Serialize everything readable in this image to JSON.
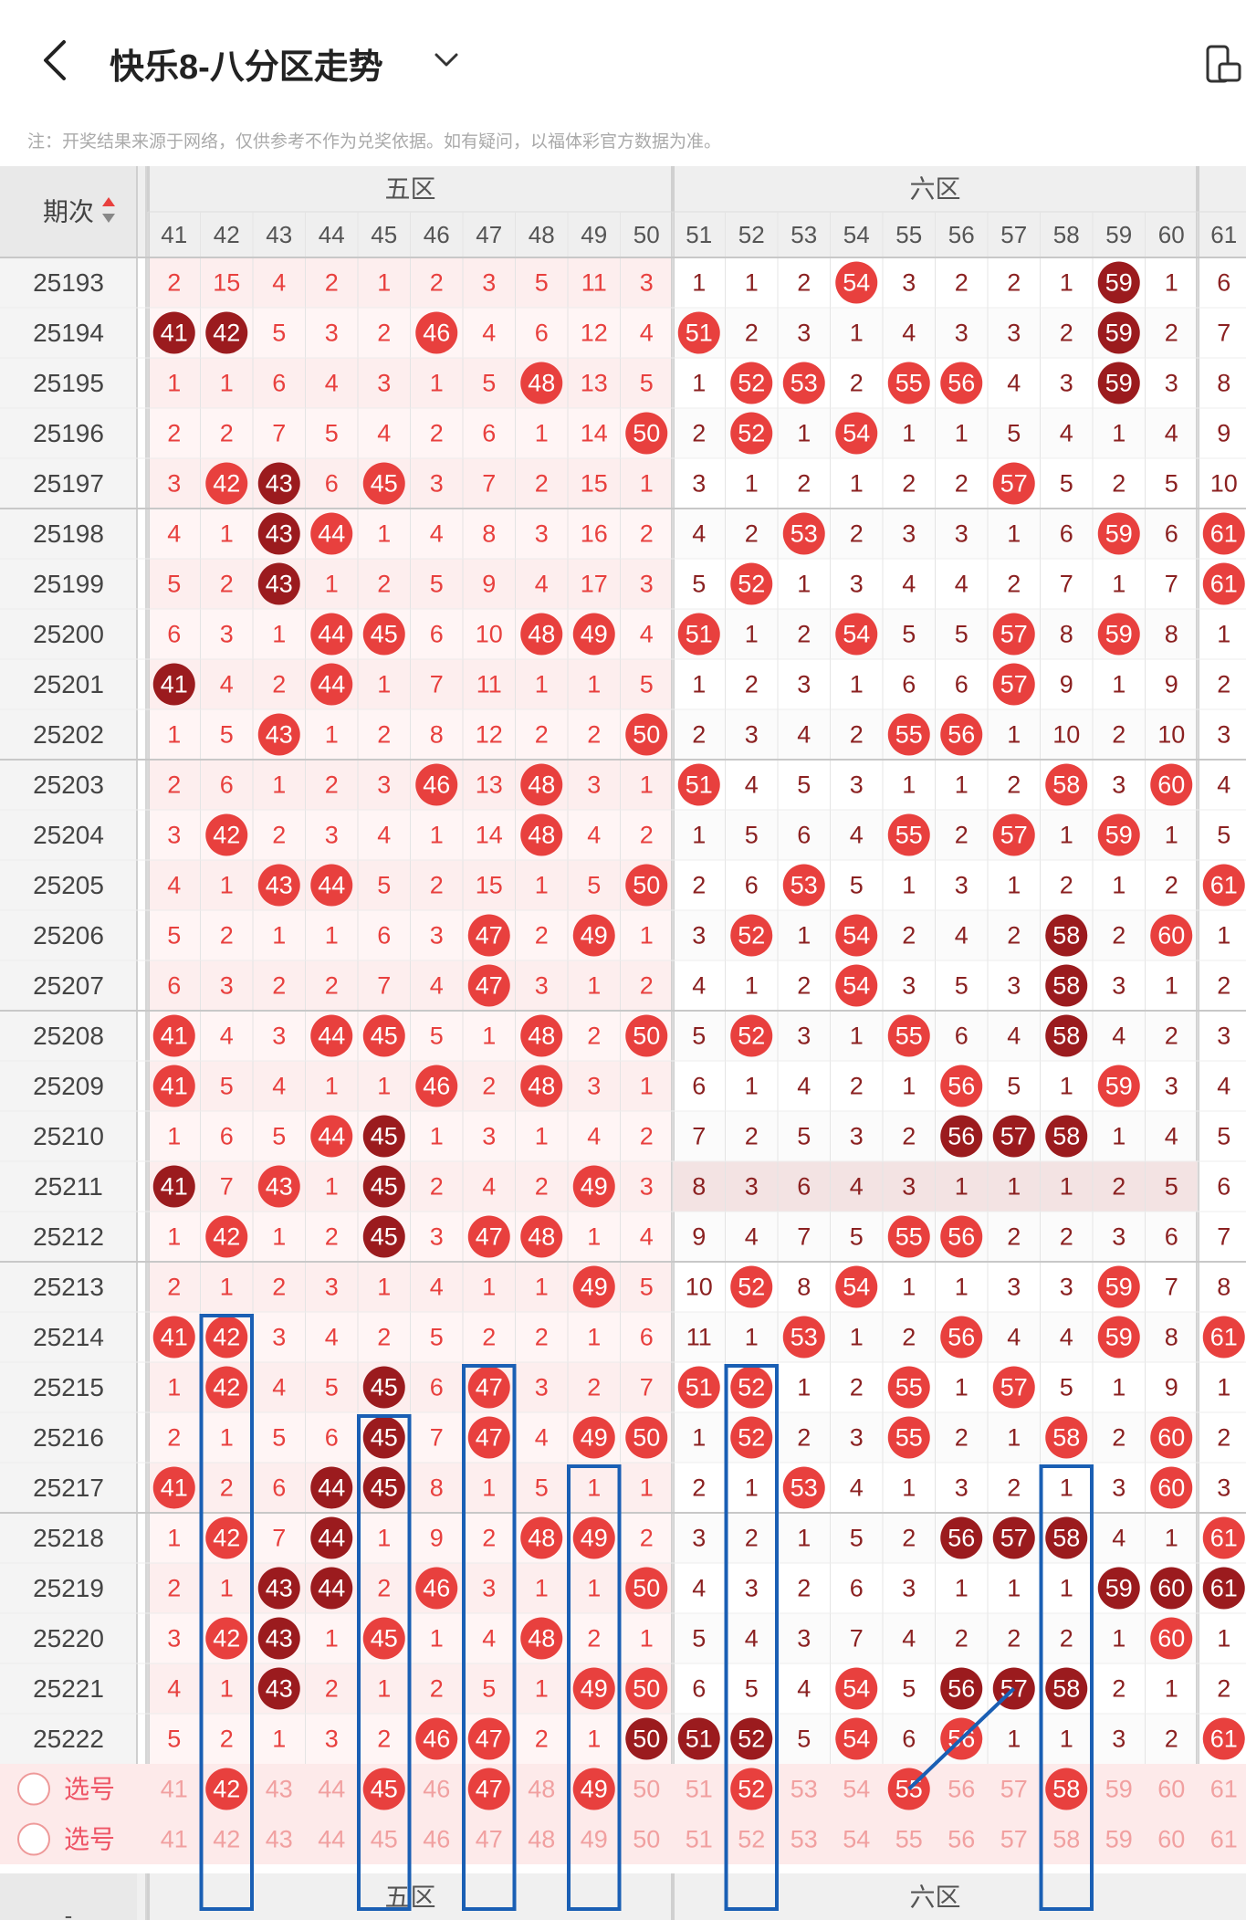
{
  "header": {
    "title": "快乐8-八分区走势",
    "back_icon": "back-arrow-icon",
    "dropdown_icon": "chevron-down-icon",
    "side_icon": "phone-window-icon"
  },
  "notice": "注：开奖结果来源于网络，仅供参考不作为兑奖依据。如有疑问，以福体彩官方数据为准。",
  "table": {
    "period_header": "期次",
    "zones": [
      {
        "label": "五区",
        "start": 41,
        "end": 50
      },
      {
        "label": "六区",
        "start": 51,
        "end": 60
      }
    ],
    "columns": [
      "41",
      "42",
      "43",
      "44",
      "45",
      "46",
      "47",
      "48",
      "49",
      "50",
      "51",
      "52",
      "53",
      "54",
      "55",
      "56",
      "57",
      "58",
      "59",
      "60",
      "61"
    ],
    "rows": [
      {
        "period": "25193",
        "cells": [
          "2",
          "15",
          "4",
          "2",
          "1",
          "2",
          "3",
          "5",
          "11",
          "3",
          "1",
          "1",
          "2",
          "54",
          "3",
          "2",
          "2",
          "1",
          "59",
          "1",
          "6"
        ],
        "hits": {
          "13": "r",
          "18": "d"
        }
      },
      {
        "period": "25194",
        "cells": [
          "41",
          "42",
          "5",
          "3",
          "2",
          "46",
          "4",
          "6",
          "12",
          "4",
          "51",
          "2",
          "3",
          "1",
          "4",
          "3",
          "3",
          "2",
          "59",
          "2",
          "7"
        ],
        "hits": {
          "0": "d",
          "1": "d",
          "5": "r",
          "10": "r",
          "18": "d"
        }
      },
      {
        "period": "25195",
        "cells": [
          "1",
          "1",
          "6",
          "4",
          "3",
          "1",
          "5",
          "48",
          "13",
          "5",
          "1",
          "52",
          "53",
          "2",
          "55",
          "56",
          "4",
          "3",
          "59",
          "3",
          "8"
        ],
        "hits": {
          "7": "r",
          "11": "r",
          "12": "r",
          "14": "r",
          "15": "r",
          "18": "d"
        }
      },
      {
        "period": "25196",
        "cells": [
          "2",
          "2",
          "7",
          "5",
          "4",
          "2",
          "6",
          "1",
          "14",
          "50",
          "2",
          "52",
          "1",
          "54",
          "1",
          "1",
          "5",
          "4",
          "1",
          "4",
          "9"
        ],
        "hits": {
          "9": "r",
          "11": "r",
          "13": "r"
        }
      },
      {
        "period": "25197",
        "cells": [
          "3",
          "42",
          "43",
          "6",
          "45",
          "3",
          "7",
          "2",
          "15",
          "1",
          "3",
          "1",
          "2",
          "1",
          "2",
          "2",
          "57",
          "5",
          "2",
          "5",
          "10"
        ],
        "hits": {
          "1": "r",
          "2": "d",
          "4": "r",
          "16": "r"
        }
      },
      {
        "period": "25198",
        "cells": [
          "4",
          "1",
          "43",
          "44",
          "1",
          "4",
          "8",
          "3",
          "16",
          "2",
          "4",
          "2",
          "53",
          "2",
          "3",
          "3",
          "1",
          "6",
          "59",
          "6",
          "61"
        ],
        "hits": {
          "2": "d",
          "3": "r",
          "12": "r",
          "18": "r",
          "20": "r"
        }
      },
      {
        "period": "25199",
        "cells": [
          "5",
          "2",
          "43",
          "1",
          "2",
          "5",
          "9",
          "4",
          "17",
          "3",
          "5",
          "52",
          "1",
          "3",
          "4",
          "4",
          "2",
          "7",
          "1",
          "7",
          "61"
        ],
        "hits": {
          "2": "d",
          "11": "r",
          "20": "r"
        }
      },
      {
        "period": "25200",
        "cells": [
          "6",
          "3",
          "1",
          "44",
          "45",
          "6",
          "10",
          "48",
          "49",
          "4",
          "51",
          "1",
          "2",
          "54",
          "5",
          "5",
          "57",
          "8",
          "59",
          "8",
          "1"
        ],
        "hits": {
          "3": "r",
          "4": "r",
          "7": "r",
          "8": "r",
          "10": "r",
          "13": "r",
          "16": "r",
          "18": "r"
        }
      },
      {
        "period": "25201",
        "cells": [
          "41",
          "4",
          "2",
          "44",
          "1",
          "7",
          "11",
          "1",
          "1",
          "5",
          "1",
          "2",
          "3",
          "1",
          "6",
          "6",
          "57",
          "9",
          "1",
          "9",
          "2"
        ],
        "hits": {
          "0": "d",
          "3": "r",
          "16": "r"
        }
      },
      {
        "period": "25202",
        "cells": [
          "1",
          "5",
          "43",
          "1",
          "2",
          "8",
          "12",
          "2",
          "2",
          "50",
          "2",
          "3",
          "4",
          "2",
          "55",
          "56",
          "1",
          "10",
          "2",
          "10",
          "3"
        ],
        "hits": {
          "2": "r",
          "9": "r",
          "14": "r",
          "15": "r"
        }
      },
      {
        "period": "25203",
        "cells": [
          "2",
          "6",
          "1",
          "2",
          "3",
          "46",
          "13",
          "48",
          "3",
          "1",
          "51",
          "4",
          "5",
          "3",
          "1",
          "1",
          "2",
          "58",
          "3",
          "60",
          "4"
        ],
        "hits": {
          "5": "r",
          "7": "r",
          "10": "r",
          "17": "r",
          "19": "r"
        }
      },
      {
        "period": "25204",
        "cells": [
          "3",
          "42",
          "2",
          "3",
          "4",
          "1",
          "14",
          "48",
          "4",
          "2",
          "1",
          "5",
          "6",
          "4",
          "55",
          "2",
          "57",
          "1",
          "59",
          "1",
          "5"
        ],
        "hits": {
          "1": "r",
          "7": "r",
          "14": "r",
          "16": "r",
          "18": "r"
        }
      },
      {
        "period": "25205",
        "cells": [
          "4",
          "1",
          "43",
          "44",
          "5",
          "2",
          "15",
          "1",
          "5",
          "50",
          "2",
          "6",
          "53",
          "5",
          "1",
          "3",
          "1",
          "2",
          "1",
          "2",
          "61"
        ],
        "hits": {
          "2": "r",
          "3": "r",
          "9": "r",
          "12": "r",
          "20": "r"
        }
      },
      {
        "period": "25206",
        "cells": [
          "5",
          "2",
          "1",
          "1",
          "6",
          "3",
          "47",
          "2",
          "49",
          "1",
          "3",
          "52",
          "1",
          "54",
          "2",
          "4",
          "2",
          "58",
          "2",
          "60",
          "1"
        ],
        "hits": {
          "6": "r",
          "8": "r",
          "11": "r",
          "13": "r",
          "17": "d",
          "19": "r"
        }
      },
      {
        "period": "25207",
        "cells": [
          "6",
          "3",
          "2",
          "2",
          "7",
          "4",
          "47",
          "3",
          "1",
          "2",
          "4",
          "1",
          "2",
          "54",
          "3",
          "5",
          "3",
          "58",
          "3",
          "1",
          "2"
        ],
        "hits": {
          "6": "r",
          "13": "r",
          "17": "d"
        }
      },
      {
        "period": "25208",
        "cells": [
          "41",
          "4",
          "3",
          "44",
          "45",
          "5",
          "1",
          "48",
          "2",
          "50",
          "5",
          "52",
          "3",
          "1",
          "55",
          "6",
          "4",
          "58",
          "4",
          "2",
          "3"
        ],
        "hits": {
          "0": "r",
          "3": "r",
          "4": "r",
          "7": "r",
          "9": "r",
          "11": "r",
          "14": "r",
          "17": "d"
        }
      },
      {
        "period": "25209",
        "cells": [
          "41",
          "5",
          "4",
          "1",
          "1",
          "46",
          "2",
          "48",
          "3",
          "1",
          "6",
          "1",
          "4",
          "2",
          "1",
          "56",
          "5",
          "1",
          "59",
          "3",
          "4"
        ],
        "hits": {
          "0": "r",
          "5": "r",
          "7": "r",
          "15": "r",
          "18": "r"
        }
      },
      {
        "period": "25210",
        "cells": [
          "1",
          "6",
          "5",
          "44",
          "45",
          "1",
          "3",
          "1",
          "4",
          "2",
          "7",
          "2",
          "5",
          "3",
          "2",
          "56",
          "57",
          "58",
          "1",
          "4",
          "5"
        ],
        "hits": {
          "3": "r",
          "4": "d",
          "15": "d",
          "16": "d",
          "17": "d"
        }
      },
      {
        "period": "25211",
        "cells": [
          "41",
          "7",
          "43",
          "1",
          "45",
          "2",
          "4",
          "2",
          "49",
          "3",
          "8",
          "3",
          "6",
          "4",
          "3",
          "1",
          "1",
          "1",
          "2",
          "5",
          "6"
        ],
        "hits": {
          "0": "d",
          "2": "r",
          "4": "d",
          "8": "r"
        }
      },
      {
        "period": "25212",
        "cells": [
          "1",
          "42",
          "1",
          "2",
          "45",
          "3",
          "47",
          "48",
          "1",
          "4",
          "9",
          "4",
          "7",
          "5",
          "55",
          "56",
          "2",
          "2",
          "3",
          "6",
          "7"
        ],
        "hits": {
          "1": "r",
          "4": "d",
          "6": "r",
          "7": "r",
          "14": "r",
          "15": "r"
        }
      },
      {
        "period": "25213",
        "cells": [
          "2",
          "1",
          "2",
          "3",
          "1",
          "4",
          "1",
          "1",
          "49",
          "5",
          "10",
          "52",
          "8",
          "54",
          "1",
          "1",
          "3",
          "3",
          "59",
          "7",
          "8"
        ],
        "hits": {
          "8": "r",
          "11": "r",
          "13": "r",
          "18": "r"
        }
      },
      {
        "period": "25214",
        "cells": [
          "41",
          "42",
          "3",
          "4",
          "2",
          "5",
          "2",
          "2",
          "1",
          "6",
          "11",
          "1",
          "53",
          "1",
          "2",
          "56",
          "4",
          "4",
          "59",
          "8",
          "61"
        ],
        "hits": {
          "0": "r",
          "1": "r",
          "12": "r",
          "15": "r",
          "18": "r",
          "20": "r"
        }
      },
      {
        "period": "25215",
        "cells": [
          "1",
          "42",
          "4",
          "5",
          "45",
          "6",
          "47",
          "3",
          "2",
          "7",
          "51",
          "52",
          "1",
          "2",
          "55",
          "1",
          "57",
          "5",
          "1",
          "9",
          "1"
        ],
        "hits": {
          "1": "r",
          "4": "d",
          "6": "r",
          "10": "r",
          "11": "r",
          "14": "r",
          "16": "r"
        }
      },
      {
        "period": "25216",
        "cells": [
          "2",
          "1",
          "5",
          "6",
          "45",
          "7",
          "47",
          "4",
          "49",
          "50",
          "1",
          "52",
          "2",
          "3",
          "55",
          "2",
          "1",
          "58",
          "2",
          "60",
          "2"
        ],
        "hits": {
          "4": "d",
          "6": "r",
          "8": "r",
          "9": "r",
          "11": "r",
          "14": "r",
          "17": "r",
          "19": "r"
        }
      },
      {
        "period": "25217",
        "cells": [
          "41",
          "2",
          "6",
          "44",
          "45",
          "8",
          "1",
          "5",
          "1",
          "1",
          "2",
          "1",
          "53",
          "4",
          "1",
          "3",
          "2",
          "1",
          "3",
          "60",
          "3"
        ],
        "hits": {
          "0": "r",
          "3": "d",
          "4": "d",
          "12": "r",
          "19": "r"
        }
      },
      {
        "period": "25218",
        "cells": [
          "1",
          "42",
          "7",
          "44",
          "1",
          "9",
          "2",
          "48",
          "49",
          "2",
          "3",
          "2",
          "1",
          "5",
          "2",
          "56",
          "57",
          "58",
          "4",
          "1",
          "61"
        ],
        "hits": {
          "1": "r",
          "3": "d",
          "7": "r",
          "8": "r",
          "15": "d",
          "16": "d",
          "17": "d",
          "20": "r"
        }
      },
      {
        "period": "25219",
        "cells": [
          "2",
          "1",
          "43",
          "44",
          "2",
          "46",
          "3",
          "1",
          "1",
          "50",
          "4",
          "3",
          "2",
          "6",
          "3",
          "1",
          "1",
          "1",
          "59",
          "60",
          "61"
        ],
        "hits": {
          "2": "d",
          "3": "d",
          "5": "r",
          "9": "r",
          "18": "d",
          "19": "d",
          "20": "d"
        }
      },
      {
        "period": "25220",
        "cells": [
          "3",
          "42",
          "43",
          "1",
          "45",
          "1",
          "4",
          "48",
          "2",
          "1",
          "5",
          "4",
          "3",
          "7",
          "4",
          "2",
          "2",
          "2",
          "1",
          "60",
          "1"
        ],
        "hits": {
          "1": "r",
          "2": "d",
          "4": "r",
          "7": "r",
          "19": "r"
        }
      },
      {
        "period": "25221",
        "cells": [
          "4",
          "1",
          "43",
          "2",
          "1",
          "2",
          "5",
          "1",
          "49",
          "50",
          "6",
          "5",
          "4",
          "54",
          "5",
          "56",
          "57",
          "58",
          "2",
          "1",
          "2"
        ],
        "hits": {
          "2": "d",
          "8": "r",
          "9": "r",
          "13": "r",
          "15": "d",
          "16": "d",
          "17": "d"
        }
      },
      {
        "period": "25222",
        "cells": [
          "5",
          "2",
          "1",
          "3",
          "2",
          "46",
          "47",
          "2",
          "1",
          "50",
          "51",
          "52",
          "5",
          "54",
          "6",
          "56",
          "1",
          "1",
          "3",
          "2",
          "61"
        ],
        "hits": {
          "5": "r",
          "6": "r",
          "9": "d",
          "10": "d",
          "11": "d",
          "13": "r",
          "15": "r",
          "20": "r"
        }
      }
    ],
    "select_rows": [
      {
        "label": "选号",
        "selected": [
          1,
          4,
          6,
          8,
          11,
          14,
          17
        ]
      },
      {
        "label": "选号",
        "selected": []
      }
    ],
    "footer_zones": [
      "五区",
      "六区"
    ],
    "footer_period": "-"
  },
  "colors": {
    "accent_red": "#e8403e",
    "dark_red": "#9b1b1e",
    "annotation_blue": "#1a5fb4"
  }
}
